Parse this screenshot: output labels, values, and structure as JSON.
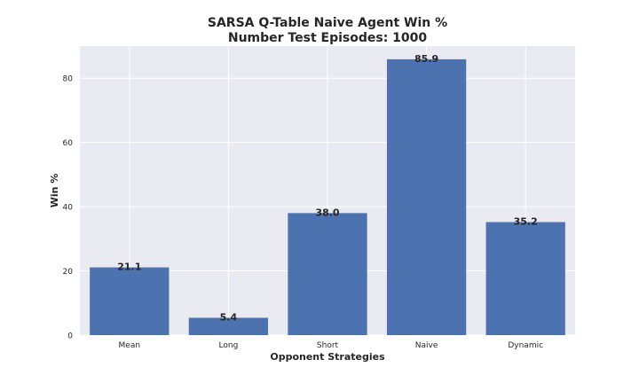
{
  "chart_data": {
    "type": "bar",
    "title": "SARSA Q-Table Naive Agent Win %",
    "subtitle": "Number Test Episodes: 1000",
    "xlabel": "Opponent Strategies",
    "ylabel": "Win %",
    "categories": [
      "Mean",
      "Long",
      "Short",
      "Naive",
      "Dynamic"
    ],
    "values": [
      21.1,
      5.4,
      38.0,
      85.9,
      35.2
    ],
    "value_labels": [
      "21.1",
      "5.4",
      "38.0",
      "85.9",
      "35.2"
    ],
    "ylim": [
      0,
      90
    ],
    "yticks": [
      0,
      20,
      40,
      60,
      80
    ],
    "grid": true,
    "legend": "none",
    "colors": {
      "bar": "#4c72b0",
      "plot_background": "#eaeaf2",
      "grid": "#ffffff",
      "text": "#262626"
    }
  }
}
